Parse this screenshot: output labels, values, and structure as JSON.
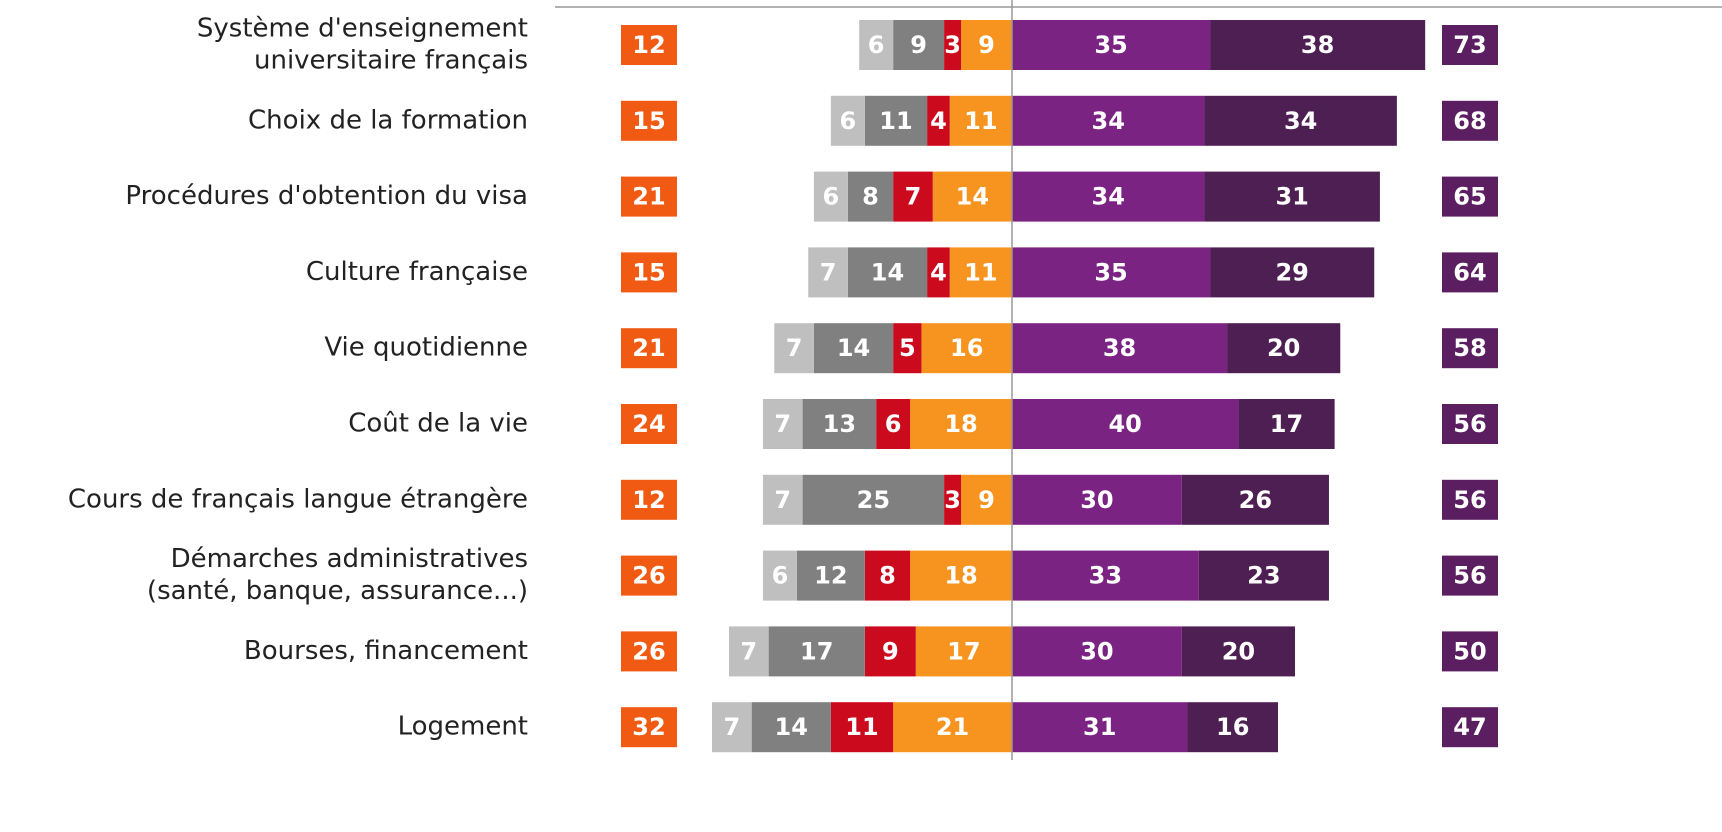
{
  "chart_data": {
    "type": "diverging-bar",
    "categories": [
      [
        "Système d'enseignement",
        "universitaire français"
      ],
      [
        "Choix de la formation"
      ],
      [
        "Procédures d'obtention du visa"
      ],
      [
        "Culture française"
      ],
      [
        "Vie quotidienne"
      ],
      [
        "Coût de la vie"
      ],
      [
        "Cours de français langue étrangère"
      ],
      [
        "Démarches administratives",
        "(santé, banque, assurance...)"
      ],
      [
        "Bourses, financement"
      ],
      [
        "Logement"
      ]
    ],
    "left_series": [
      {
        "color": "#f7941f",
        "values": [
          9,
          11,
          14,
          11,
          16,
          18,
          9,
          18,
          17,
          21
        ]
      },
      {
        "color": "#cc0a1e",
        "values": [
          3,
          4,
          7,
          4,
          5,
          6,
          3,
          8,
          9,
          11
        ]
      },
      {
        "color": "#808080",
        "values": [
          9,
          11,
          8,
          14,
          14,
          13,
          25,
          12,
          17,
          14
        ]
      },
      {
        "color": "#bfbfbf",
        "values": [
          6,
          6,
          6,
          7,
          7,
          7,
          7,
          6,
          7,
          7
        ]
      }
    ],
    "right_series": [
      {
        "color": "#7b2382",
        "values": [
          35,
          34,
          34,
          35,
          38,
          40,
          30,
          33,
          30,
          31
        ]
      },
      {
        "color": "#4e1f52",
        "values": [
          38,
          34,
          31,
          29,
          20,
          17,
          26,
          23,
          20,
          16
        ]
      }
    ],
    "left_totals": {
      "color": "#f05a12",
      "values": [
        12,
        15,
        21,
        15,
        21,
        24,
        12,
        26,
        26,
        32
      ]
    },
    "right_totals": {
      "color": "#5b1e60",
      "values": [
        73,
        68,
        65,
        64,
        58,
        56,
        56,
        56,
        50,
        47
      ]
    }
  }
}
